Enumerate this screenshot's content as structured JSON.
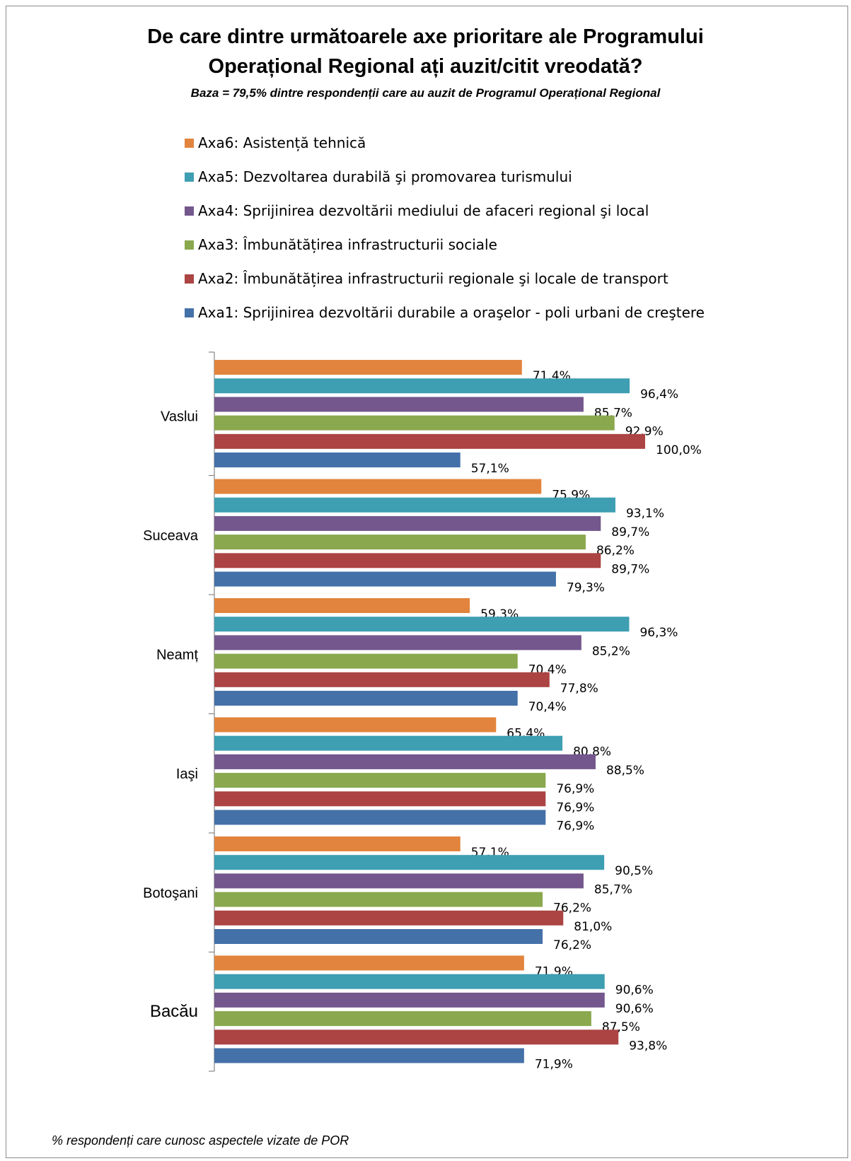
{
  "chart_data": {
    "type": "bar",
    "orientation": "horizontal",
    "title_line1": "De care dintre următoarele axe prioritare ale Programului",
    "title_line2": "Operațional Regional ați auzit/citit vreodată?",
    "subtitle": "Baza = 79,5% dintre respondenții care au auzit de Programul  Operațional  Regional",
    "footer_note": "% respondenți  care cunosc aspectele vizate de POR",
    "categories": [
      "Vaslui",
      "Suceava",
      "Neamț",
      "Iaşi",
      "Botoşani",
      "Bacău"
    ],
    "series": [
      {
        "name": "Axa6: Asistență tehnică",
        "color": "#e2843d",
        "values": [
          71.4,
          75.9,
          59.3,
          65.4,
          57.1,
          71.9
        ],
        "labels": [
          "71,4%",
          "75,9%",
          "59,3%",
          "65,4%",
          "57,1%",
          "71,9%"
        ]
      },
      {
        "name": "Axa5: Dezvoltarea durabilă şi promovarea turismului",
        "color": "#3e9eb2",
        "values": [
          96.4,
          93.1,
          96.3,
          80.8,
          90.5,
          90.6
        ],
        "labels": [
          "96,4%",
          "93,1%",
          "96,3%",
          "80,8%",
          "90,5%",
          "90,6%"
        ]
      },
      {
        "name": "Axa4: Sprijinirea dezvoltării mediului de afaceri regional şi local",
        "color": "#73578d",
        "values": [
          85.7,
          89.7,
          85.2,
          88.5,
          85.7,
          90.6
        ],
        "labels": [
          "85,7%",
          "89,7%",
          "85,2%",
          "88,5%",
          "85,7%",
          "90,6%"
        ]
      },
      {
        "name": "Axa3: Îmbunătățirea  infrastructurii sociale",
        "color": "#8aa84d",
        "values": [
          92.9,
          86.2,
          70.4,
          76.9,
          76.2,
          87.5
        ],
        "labels": [
          "92,9%",
          "86,2%",
          "70,4%",
          "76,9%",
          "76,2%",
          "87,5%"
        ]
      },
      {
        "name": "Axa2: Îmbunătățirea  infrastructurii regionale şi locale de transport",
        "color": "#ab4443",
        "values": [
          100.0,
          89.7,
          77.8,
          76.9,
          81.0,
          93.8
        ],
        "labels": [
          "100,0%",
          "89,7%",
          "77,8%",
          "76,9%",
          "81,0%",
          "93,8%"
        ]
      },
      {
        "name": "Axa1: Sprijinirea dezvoltării durabile a oraşelor - poli urbani de creştere",
        "color": "#4471a8",
        "values": [
          57.1,
          79.3,
          70.4,
          76.9,
          76.2,
          71.9
        ],
        "labels": [
          "57,1%",
          "79,3%",
          "70,4%",
          "76,9%",
          "76,2%",
          "71,9%"
        ]
      }
    ],
    "xlim": [
      0,
      100
    ],
    "grid": false,
    "legend_position": "top"
  }
}
